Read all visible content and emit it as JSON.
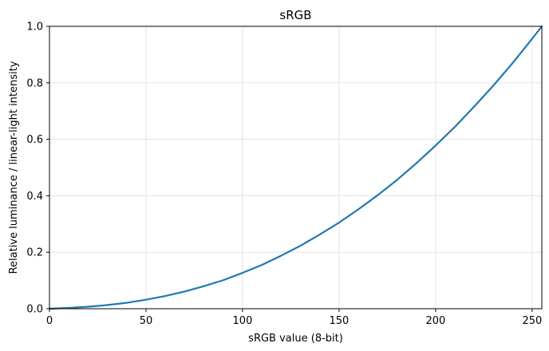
{
  "chart_data": {
    "type": "line",
    "title": "sRGB",
    "xlabel": "sRGB value (8-bit)",
    "ylabel": "Relative luminance / linear-light intensity",
    "xlim": [
      0,
      255
    ],
    "ylim": [
      0,
      1
    ],
    "xticks": [
      0,
      50,
      100,
      150,
      200,
      250
    ],
    "yticks": [
      0.0,
      0.2,
      0.4,
      0.6,
      0.8,
      1.0
    ],
    "grid": true,
    "line_color": "#1f77b4",
    "series": [
      {
        "x": [
          0,
          10,
          20,
          30,
          40,
          50,
          60,
          70,
          80,
          90,
          100,
          110,
          120,
          130,
          140,
          150,
          160,
          170,
          180,
          190,
          200,
          210,
          220,
          230,
          240,
          250,
          255
        ],
        "values": [
          0.0,
          0.003,
          0.007,
          0.013,
          0.021,
          0.032,
          0.045,
          0.061,
          0.08,
          0.101,
          0.127,
          0.155,
          0.188,
          0.223,
          0.263,
          0.305,
          0.352,
          0.402,
          0.456,
          0.515,
          0.578,
          0.644,
          0.716,
          0.791,
          0.871,
          0.956,
          1.0
        ]
      }
    ]
  }
}
